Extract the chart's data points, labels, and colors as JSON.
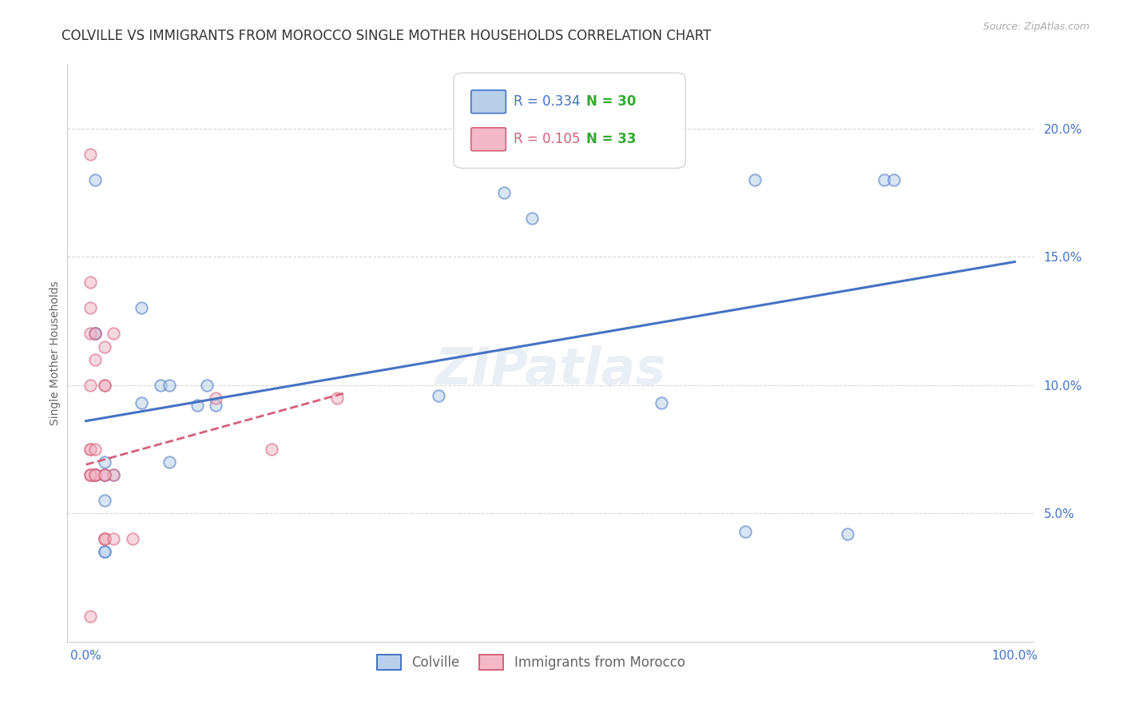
{
  "title": "COLVILLE VS IMMIGRANTS FROM MOROCCO SINGLE MOTHER HOUSEHOLDS CORRELATION CHART",
  "source": "Source: ZipAtlas.com",
  "ylabel": "Single Mother Households",
  "x_tick_labels": [
    "0.0%",
    "100.0%"
  ],
  "y_tick_labels": [
    "5.0%",
    "10.0%",
    "15.0%",
    "20.0%"
  ],
  "y_tick_values": [
    0.05,
    0.1,
    0.15,
    0.2
  ],
  "xlim": [
    -0.02,
    1.02
  ],
  "ylim": [
    0.0,
    0.225
  ],
  "colville_fill": "#b8d0ea",
  "colville_edge": "#4472c4",
  "morocco_fill": "#f4b8c8",
  "morocco_edge": "#d4607a",
  "colville_R": "0.334",
  "colville_N": "30",
  "morocco_R": "0.105",
  "morocco_N": "33",
  "colville_scatter_x": [
    0.02,
    0.01,
    0.45,
    0.48,
    0.01,
    0.02,
    0.02,
    0.03,
    0.06,
    0.06,
    0.08,
    0.09,
    0.09,
    0.12,
    0.13,
    0.14,
    0.38,
    0.62,
    0.71,
    0.72,
    0.82,
    0.86,
    0.87,
    0.01,
    0.01,
    0.01,
    0.01,
    0.02,
    0.02,
    0.02
  ],
  "colville_scatter_y": [
    0.035,
    0.18,
    0.175,
    0.165,
    0.12,
    0.065,
    0.035,
    0.065,
    0.13,
    0.093,
    0.1,
    0.1,
    0.07,
    0.092,
    0.1,
    0.092,
    0.096,
    0.093,
    0.043,
    0.18,
    0.042,
    0.18,
    0.18,
    0.12,
    0.065,
    0.065,
    0.065,
    0.065,
    0.07,
    0.055
  ],
  "morocco_scatter_x": [
    0.005,
    0.005,
    0.005,
    0.005,
    0.005,
    0.005,
    0.005,
    0.005,
    0.005,
    0.005,
    0.01,
    0.01,
    0.01,
    0.01,
    0.01,
    0.01,
    0.02,
    0.02,
    0.02,
    0.02,
    0.02,
    0.03,
    0.03,
    0.05,
    0.14,
    0.2,
    0.27,
    0.005,
    0.01,
    0.02,
    0.02,
    0.02,
    0.03
  ],
  "morocco_scatter_y": [
    0.19,
    0.14,
    0.13,
    0.12,
    0.1,
    0.075,
    0.075,
    0.065,
    0.065,
    0.01,
    0.12,
    0.11,
    0.075,
    0.065,
    0.065,
    0.065,
    0.115,
    0.1,
    0.065,
    0.04,
    0.04,
    0.12,
    0.065,
    0.04,
    0.095,
    0.075,
    0.095,
    0.065,
    0.065,
    0.1,
    0.065,
    0.04,
    0.04
  ],
  "colville_trend_x": [
    0.0,
    1.0
  ],
  "colville_trend_y": [
    0.086,
    0.148
  ],
  "morocco_trend_x": [
    0.0,
    0.28
  ],
  "morocco_trend_y": [
    0.069,
    0.097
  ],
  "watermark": "ZIPatlas",
  "bg_color": "#ffffff",
  "grid_color": "#d8d8d8",
  "title_fontsize": 12,
  "ylabel_fontsize": 10,
  "tick_fontsize": 11,
  "legend_fontsize": 12,
  "scatter_size": 110,
  "scatter_alpha": 0.55,
  "scatter_lw": 1.4,
  "R_color": "#4472c4",
  "N_color": "#33aa33",
  "R2_color": "#d4607a",
  "N2_color": "#33aa33"
}
